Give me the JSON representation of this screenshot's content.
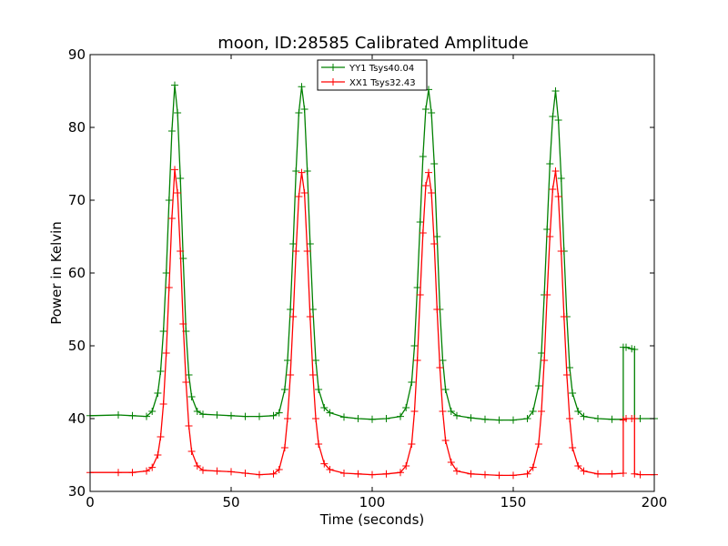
{
  "chart_data": {
    "type": "line",
    "title": "moon, ID:28585 Calibrated Amplitude",
    "xlabel": "Time (seconds)",
    "ylabel": "Power in Kelvin",
    "xlim": [
      0,
      200
    ],
    "ylim": [
      30,
      90
    ],
    "xticks": [
      0,
      50,
      100,
      150,
      200
    ],
    "yticks": [
      30,
      40,
      50,
      60,
      70,
      80,
      90
    ],
    "grid": false,
    "legend_position": "top-center",
    "series": [
      {
        "name": "YY1 Tsys40.04",
        "color": "#008000",
        "marker": "+",
        "x": [
          0,
          10,
          15,
          20,
          22,
          24,
          25,
          26,
          27,
          28,
          29,
          30,
          31,
          32,
          33,
          34,
          35,
          36,
          38,
          40,
          45,
          50,
          55,
          60,
          65,
          67,
          69,
          70,
          71,
          72,
          73,
          74,
          75,
          76,
          77,
          78,
          79,
          80,
          81,
          83,
          85,
          90,
          95,
          100,
          105,
          110,
          112,
          114,
          115,
          116,
          117,
          118,
          119,
          120,
          121,
          122,
          123,
          124,
          125,
          126,
          128,
          130,
          135,
          140,
          145,
          150,
          155,
          157,
          159,
          160,
          161,
          162,
          163,
          164,
          165,
          166,
          167,
          168,
          169,
          170,
          171,
          173,
          175,
          180,
          185,
          189,
          189,
          190,
          192,
          193,
          193,
          195,
          200
        ],
        "y": [
          40.4,
          40.5,
          40.4,
          40.3,
          41.0,
          43.5,
          46.5,
          52.0,
          60.0,
          70.0,
          79.5,
          85.8,
          82.0,
          73.0,
          62.0,
          52.0,
          46.0,
          43.0,
          41.0,
          40.6,
          40.5,
          40.4,
          40.3,
          40.3,
          40.4,
          40.8,
          44.0,
          48.0,
          55.0,
          64.0,
          74.0,
          82.0,
          85.6,
          82.5,
          74.0,
          64.0,
          55.0,
          48.0,
          44.0,
          41.5,
          40.8,
          40.2,
          40.0,
          39.9,
          40.0,
          40.3,
          41.5,
          45.0,
          50.0,
          58.0,
          67.0,
          76.0,
          82.5,
          85.2,
          82.0,
          75.0,
          65.0,
          55.0,
          48.0,
          44.0,
          41.0,
          40.4,
          40.1,
          39.9,
          39.8,
          39.8,
          40.0,
          41.0,
          44.5,
          49.0,
          57.0,
          66.0,
          75.0,
          81.5,
          85.0,
          81.0,
          73.0,
          63.0,
          54.0,
          47.0,
          43.5,
          41.0,
          40.3,
          40.0,
          39.9,
          39.9,
          49.8,
          49.8,
          49.6,
          49.5,
          40.0,
          40.0,
          40.0
        ]
      },
      {
        "name": "XX1 Tsys32.43",
        "color": "#ff0000",
        "marker": "+",
        "x": [
          0,
          10,
          15,
          20,
          22,
          24,
          25,
          26,
          27,
          28,
          29,
          30,
          31,
          32,
          33,
          34,
          35,
          36,
          38,
          40,
          45,
          50,
          55,
          60,
          65,
          67,
          69,
          70,
          71,
          72,
          73,
          74,
          75,
          76,
          77,
          78,
          79,
          80,
          81,
          83,
          85,
          90,
          95,
          100,
          105,
          110,
          112,
          114,
          115,
          116,
          117,
          118,
          119,
          120,
          121,
          122,
          123,
          124,
          125,
          126,
          128,
          130,
          135,
          140,
          145,
          150,
          155,
          157,
          159,
          160,
          161,
          162,
          163,
          164,
          165,
          166,
          167,
          168,
          169,
          170,
          171,
          173,
          175,
          180,
          185,
          189,
          189,
          190,
          192,
          193,
          193,
          195,
          200
        ],
        "y": [
          32.6,
          32.6,
          32.6,
          32.8,
          33.3,
          35.0,
          37.5,
          42.0,
          49.0,
          58.0,
          67.5,
          74.2,
          71.0,
          63.0,
          53.0,
          45.0,
          39.0,
          35.5,
          33.5,
          32.9,
          32.8,
          32.7,
          32.5,
          32.3,
          32.4,
          33.0,
          36.0,
          40.0,
          46.0,
          54.0,
          63.0,
          70.5,
          73.8,
          71.0,
          63.0,
          54.0,
          46.0,
          40.0,
          36.5,
          33.8,
          33.0,
          32.5,
          32.4,
          32.3,
          32.4,
          32.6,
          33.5,
          36.5,
          41.0,
          48.0,
          57.0,
          65.5,
          72.0,
          73.8,
          71.0,
          64.0,
          55.0,
          47.0,
          41.0,
          37.0,
          34.0,
          32.8,
          32.4,
          32.3,
          32.2,
          32.2,
          32.4,
          33.3,
          36.5,
          41.0,
          48.0,
          57.0,
          65.0,
          71.5,
          74.0,
          70.5,
          63.0,
          54.0,
          46.0,
          40.0,
          36.0,
          33.5,
          32.8,
          32.4,
          32.4,
          32.5,
          39.8,
          40.0,
          40.0,
          40.0,
          32.4,
          32.3,
          32.3
        ]
      }
    ]
  }
}
